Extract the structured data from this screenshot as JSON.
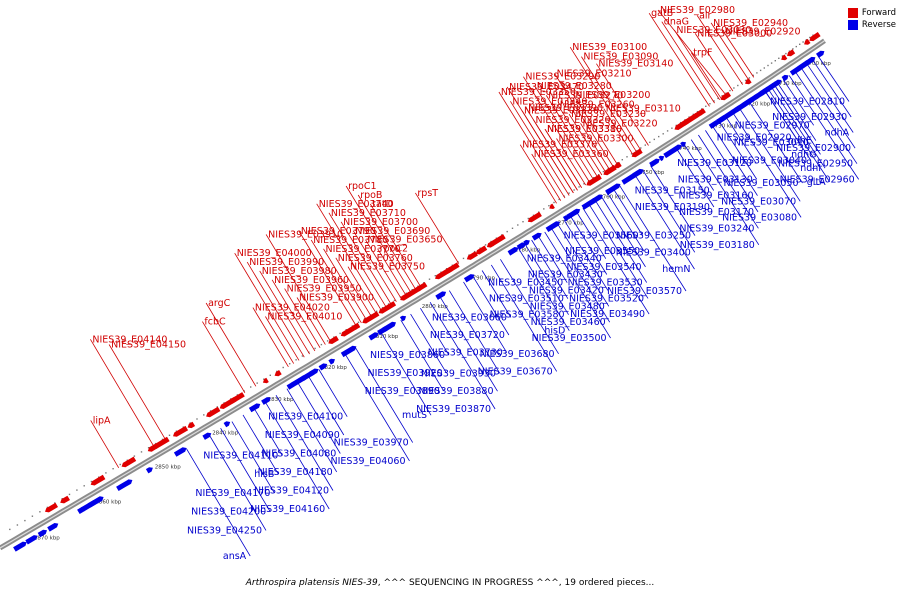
{
  "caption": {
    "organism": "Arthrospira platensis NIES-39",
    "rest": ", ^^^ SEQUENCING IN PROGRESS ^^^, 19 ordered pieces..."
  },
  "legend": {
    "forward_label": "Forward",
    "reverse_label": "Reverse",
    "forward_color": "#e00000",
    "reverse_color": "#0000e8"
  },
  "colors": {
    "forward": "#e00000",
    "reverse": "#0000e8",
    "forward_label": "#d00000",
    "reverse_label": "#0000cc",
    "backbone": "#8c8c8c"
  },
  "scale": {
    "start_kbp": 2700,
    "end_kbp": 2870,
    "step_kbp": 10,
    "unit": "kbp",
    "ticks": [
      "2700 kbp",
      "2710 kbp",
      "2720 kbp",
      "2730 kbp",
      "2740 kbp",
      "2750 kbp",
      "2760 kbp",
      "2770 kbp",
      "2780 kbp",
      "2790 kbp",
      "2800 kbp",
      "2810 kbp",
      "2820 kbp",
      "2830 kbp",
      "2840 kbp",
      "2850 kbp",
      "2860 kbp",
      "2870 kbp"
    ]
  },
  "reverse_labels": [
    {
      "text": "NIES39_E02810",
      "kbp": 2698.2
    },
    {
      "text": "NIES39_E02930",
      "kbp": 2700.2
    },
    {
      "text": "ndhA",
      "kbp": 2702.2
    },
    {
      "text": "NIES39_E02900",
      "kbp": 2704.2
    },
    {
      "text": "NIES39_E02950",
      "kbp": 2706.2
    },
    {
      "text": "NIES39_E02960",
      "kbp": 2708.2
    },
    {
      "text": "NIES39_E02970",
      "kbp": 2710.2
    },
    {
      "text": "NIES39_E03010",
      "kbp": 2713.0
    },
    {
      "text": "NIES39_E03040",
      "kbp": 2716.0
    },
    {
      "text": "NIES39_E03050",
      "kbp": 2721.0
    },
    {
      "text": "NIES39_E03070",
      "kbp": 2724.0
    },
    {
      "text": "NIES39_E03080",
      "kbp": 2726.0
    },
    {
      "text": "NIES39_E03120",
      "kbp": 2728.0
    },
    {
      "text": "NIES39_E03130",
      "kbp": 2730.0
    },
    {
      "text": "NIES39_E03160",
      "kbp": 2732.0
    },
    {
      "text": "NIES39_E03170",
      "kbp": 2734.0
    },
    {
      "text": "NIES39_E03240",
      "kbp": 2736.0
    },
    {
      "text": "NIES39_E03180",
      "kbp": 2738.0
    },
    {
      "text": "NIES39_E03150",
      "kbp": 2740.0
    },
    {
      "text": "NIES39_E03190",
      "kbp": 2742.0
    },
    {
      "text": "NIES39_E03250",
      "kbp": 2749.0
    },
    {
      "text": "NIES39_E03400",
      "kbp": 2751.0
    },
    {
      "text": "hemN",
      "kbp": 2753.0
    },
    {
      "text": "NIES39_E03570",
      "kbp": 2757.0
    },
    {
      "text": "NIES39_E03560",
      "kbp": 2758.5
    },
    {
      "text": "NIES39_E03550",
      "kbp": 2760.0
    },
    {
      "text": "NIES39_E03540",
      "kbp": 2761.5
    },
    {
      "text": "NIES39_E03530",
      "kbp": 2763.0
    },
    {
      "text": "NIES39_E03520",
      "kbp": 2764.5
    },
    {
      "text": "NIES39_E03490",
      "kbp": 2766.0
    },
    {
      "text": "NIES39_E03440",
      "kbp": 2767.5
    },
    {
      "text": "NIES39_E03430",
      "kbp": 2769.0
    },
    {
      "text": "NIES39_E03420",
      "kbp": 2770.5
    },
    {
      "text": "NIES39_E03480",
      "kbp": 2772.0
    },
    {
      "text": "NIES39_E03460",
      "kbp": 2773.5
    },
    {
      "text": "NIES39_E03500",
      "kbp": 2775.0
    },
    {
      "text": "NIES39_E03450",
      "kbp": 2776.5
    },
    {
      "text": "NIES39_E03510",
      "kbp": 2778.0
    },
    {
      "text": "NIES39_E03580",
      "kbp": 2779.5
    },
    {
      "text": "hisD",
      "kbp": 2781.0
    },
    {
      "text": "NIES39_E03680",
      "kbp": 2785.0
    },
    {
      "text": "NIES39_E03670",
      "kbp": 2787.0
    },
    {
      "text": "NIES39_E03660",
      "kbp": 2789.0
    },
    {
      "text": "NIES39_E03720",
      "kbp": 2791.0
    },
    {
      "text": "NIES39_E03730",
      "kbp": 2793.0
    },
    {
      "text": "NIES39_E03930",
      "kbp": 2796.0
    },
    {
      "text": "NIES39_E03880",
      "kbp": 2798.0
    },
    {
      "text": "NIES39_E03870",
      "kbp": 2800.0
    },
    {
      "text": "NIES39_E03860",
      "kbp": 2802.0
    },
    {
      "text": "NIES39_E03920",
      "kbp": 2804.0
    },
    {
      "text": "NIES39_E03890",
      "kbp": 2806.0
    },
    {
      "text": "mutS",
      "kbp": 2810.0
    },
    {
      "text": "NIES39_E03970",
      "kbp": 2815.0
    },
    {
      "text": "NIES39_E04060",
      "kbp": 2817.0
    },
    {
      "text": "NIES39_E04100",
      "kbp": 2822.0
    },
    {
      "text": "NIES39_E04090",
      "kbp": 2824.0
    },
    {
      "text": "NIES39_E04080",
      "kbp": 2826.0
    },
    {
      "text": "NIES39_E04180",
      "kbp": 2828.0
    },
    {
      "text": "NIES39_E04120",
      "kbp": 2830.0
    },
    {
      "text": "NIES39_E04160",
      "kbp": 2832.0
    },
    {
      "text": "NIES39_E04110",
      "kbp": 2834.0
    },
    {
      "text": "hisB",
      "kbp": 2836.0
    },
    {
      "text": "NIES39_E04170",
      "kbp": 2838.0
    },
    {
      "text": "NIES39_E04200",
      "kbp": 2840.0
    },
    {
      "text": "NIES39_E04250",
      "kbp": 2842.0
    },
    {
      "text": "ansA",
      "kbp": 2846.0
    },
    {
      "text": "NIES39_E02920",
      "kbp": 2716.0
    },
    {
      "text": "ndhE",
      "kbp": 2712.0
    },
    {
      "text": "ndhG",
      "kbp": 2713.0
    },
    {
      "text": "ndhI",
      "kbp": 2714.0
    },
    {
      "text": "gltA",
      "kbp": 2715.0
    }
  ],
  "forward_labels": [
    {
      "text": "NIES39_E02920",
      "kbp": 2716.5
    },
    {
      "text": "NIES39_E02940",
      "kbp": 2718.0
    },
    {
      "text": "NIES39_E03030",
      "kbp": 2727.0
    },
    {
      "text": "dnaG",
      "kbp": 2728.5
    },
    {
      "text": "gatB",
      "kbp": 2730.0
    },
    {
      "text": "NIES39_E02980",
      "kbp": 2725.0
    },
    {
      "text": "trpF",
      "kbp": 2726.5
    },
    {
      "text": "NIES39_E03000",
      "kbp": 2723.0
    },
    {
      "text": "alr",
      "kbp": 2720.0
    },
    {
      "text": "NIES39_E03140",
      "kbp": 2747.0
    },
    {
      "text": "NIES39_E03090",
      "kbp": 2749.0
    },
    {
      "text": "NIES39_E03100",
      "kbp": 2750.0
    },
    {
      "text": "NIES39_E03110",
      "kbp": 2751.0
    },
    {
      "text": "NIES39_E03380",
      "kbp": 2764.0
    },
    {
      "text": "NIES39_E03200",
      "kbp": 2755.0
    },
    {
      "text": "NIES39_E03390",
      "kbp": 2765.0
    },
    {
      "text": "NIES39_E03210",
      "kbp": 2756.0
    },
    {
      "text": "NIES39_E03470",
      "kbp": 2766.0
    },
    {
      "text": "NIES39_E03220",
      "kbp": 2757.0
    },
    {
      "text": "NIES39_E03230",
      "kbp": 2758.0
    },
    {
      "text": "NIES39_E03260",
      "kbp": 2759.0
    },
    {
      "text": "NIES39_E03270",
      "kbp": 2760.0
    },
    {
      "text": "NIES39_E03280",
      "kbp": 2761.0
    },
    {
      "text": "NIES39_E03290",
      "kbp": 2762.0
    },
    {
      "text": "NIES39_E03300",
      "kbp": 2763.0
    },
    {
      "text": "NIES39_E03310",
      "kbp": 2764.0
    },
    {
      "text": "NIES39_E03320",
      "kbp": 2765.0
    },
    {
      "text": "NIES39_E03330",
      "kbp": 2766.0
    },
    {
      "text": "NIES39_E03340",
      "kbp": 2767.0
    },
    {
      "text": "NIES39_E03350",
      "kbp": 2768.0
    },
    {
      "text": "NIES39_E03360",
      "kbp": 2769.0
    },
    {
      "text": "NIES39_E03370",
      "kbp": 2770.0
    },
    {
      "text": "rpsT",
      "kbp": 2792.0
    },
    {
      "text": "tatD",
      "kbp": 2800.0
    },
    {
      "text": "rpoB",
      "kbp": 2801.0
    },
    {
      "text": "rpoC1",
      "kbp": 2802.0
    },
    {
      "text": "rpoC2",
      "kbp": 2803.0
    },
    {
      "text": "NIES39_E03650",
      "kbp": 2804.0
    },
    {
      "text": "NIES39_E03690",
      "kbp": 2805.0
    },
    {
      "text": "NIES39_E03700",
      "kbp": 2806.0
    },
    {
      "text": "NIES39_E03710",
      "kbp": 2807.0
    },
    {
      "text": "NIES39_E03740",
      "kbp": 2808.0
    },
    {
      "text": "NIES39_E03750",
      "kbp": 2809.0
    },
    {
      "text": "NIES39_E03760",
      "kbp": 2810.0
    },
    {
      "text": "NIES39_E03770",
      "kbp": 2811.0
    },
    {
      "text": "NIES39_E03780",
      "kbp": 2812.0
    },
    {
      "text": "NIES39_E03790",
      "kbp": 2813.0
    },
    {
      "text": "NIES39_E03910",
      "kbp": 2818.0
    },
    {
      "text": "NIES39_E03900",
      "kbp": 2819.0
    },
    {
      "text": "NIES39_E03950",
      "kbp": 2820.0
    },
    {
      "text": "NIES39_E03960",
      "kbp": 2821.0
    },
    {
      "text": "NIES39_E03980",
      "kbp": 2822.0
    },
    {
      "text": "NIES39_E03990",
      "kbp": 2823.0
    },
    {
      "text": "NIES39_E04000",
      "kbp": 2824.0
    },
    {
      "text": "NIES39_E04010",
      "kbp": 2825.0
    },
    {
      "text": "NIES39_E04020",
      "kbp": 2826.0
    },
    {
      "text": "fcbC",
      "kbp": 2834.0
    },
    {
      "text": "argC",
      "kbp": 2832.0
    },
    {
      "text": "NIES39_E04150",
      "kbp": 2848.0
    },
    {
      "text": "NIES39_E04140",
      "kbp": 2850.0
    },
    {
      "text": "lipA",
      "kbp": 2856.0
    }
  ]
}
